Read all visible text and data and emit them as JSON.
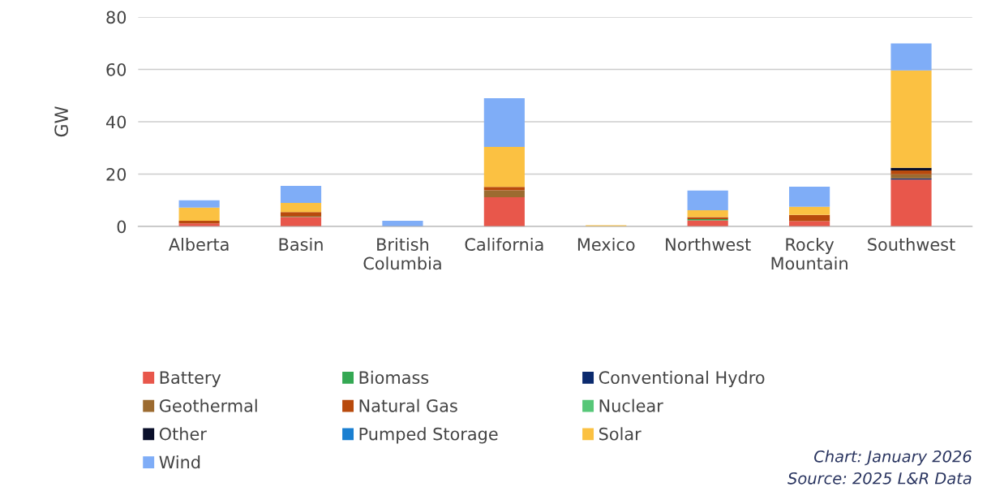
{
  "chart_data": {
    "type": "bar",
    "stacked": true,
    "ylabel": "GW",
    "categories": [
      "Alberta",
      "Basin",
      "British\nColumbia",
      "California",
      "Mexico",
      "Northwest",
      "Rocky\nMountain",
      "Southwest"
    ],
    "series": [
      {
        "name": "Battery",
        "color": "#e8574b",
        "values": [
          1.2,
          3.6,
          0,
          11.2,
          0,
          2.3,
          2,
          17.9
        ]
      },
      {
        "name": "Biomass",
        "color": "#34a853",
        "values": [
          0,
          0,
          0,
          0,
          0,
          0.5,
          0,
          0
        ]
      },
      {
        "name": "Conventional Hydro",
        "color": "#0b2a6e",
        "values": [
          0,
          0,
          0,
          0,
          0,
          0,
          0,
          0.5
        ]
      },
      {
        "name": "Geothermal",
        "color": "#9c6b30",
        "values": [
          0,
          0.4,
          0,
          2.6,
          0,
          0,
          0,
          1.5
        ]
      },
      {
        "name": "Natural Gas",
        "color": "#b84a0d",
        "values": [
          1,
          1.5,
          0,
          1.3,
          0,
          0.8,
          2.4,
          1.5
        ]
      },
      {
        "name": "Nuclear",
        "color": "#57c778",
        "values": [
          0,
          0,
          0,
          0,
          0,
          0,
          0,
          0
        ]
      },
      {
        "name": "Other",
        "color": "#0a0f2a",
        "values": [
          0,
          0,
          0,
          0,
          0,
          0,
          0,
          1
        ]
      },
      {
        "name": "Pumped Storage",
        "color": "#1a7fd1",
        "values": [
          0,
          0,
          0,
          0,
          0,
          0,
          0,
          0
        ]
      },
      {
        "name": "Solar",
        "color": "#fbc142",
        "values": [
          5,
          3.5,
          0,
          15.3,
          0.5,
          2.6,
          3.1,
          37.2
        ]
      },
      {
        "name": "Wind",
        "color": "#7fadf7",
        "values": [
          2.8,
          6.5,
          2.2,
          18.6,
          0,
          7.5,
          7.7,
          10.3
        ]
      }
    ],
    "ylim": [
      0,
      80
    ],
    "yticks": [
      0,
      20,
      40,
      60,
      80
    ],
    "grid": "y",
    "legend": "bottom",
    "annotations": [
      "Chart: January 2026",
      "Source: 2025 L&R Data"
    ]
  }
}
